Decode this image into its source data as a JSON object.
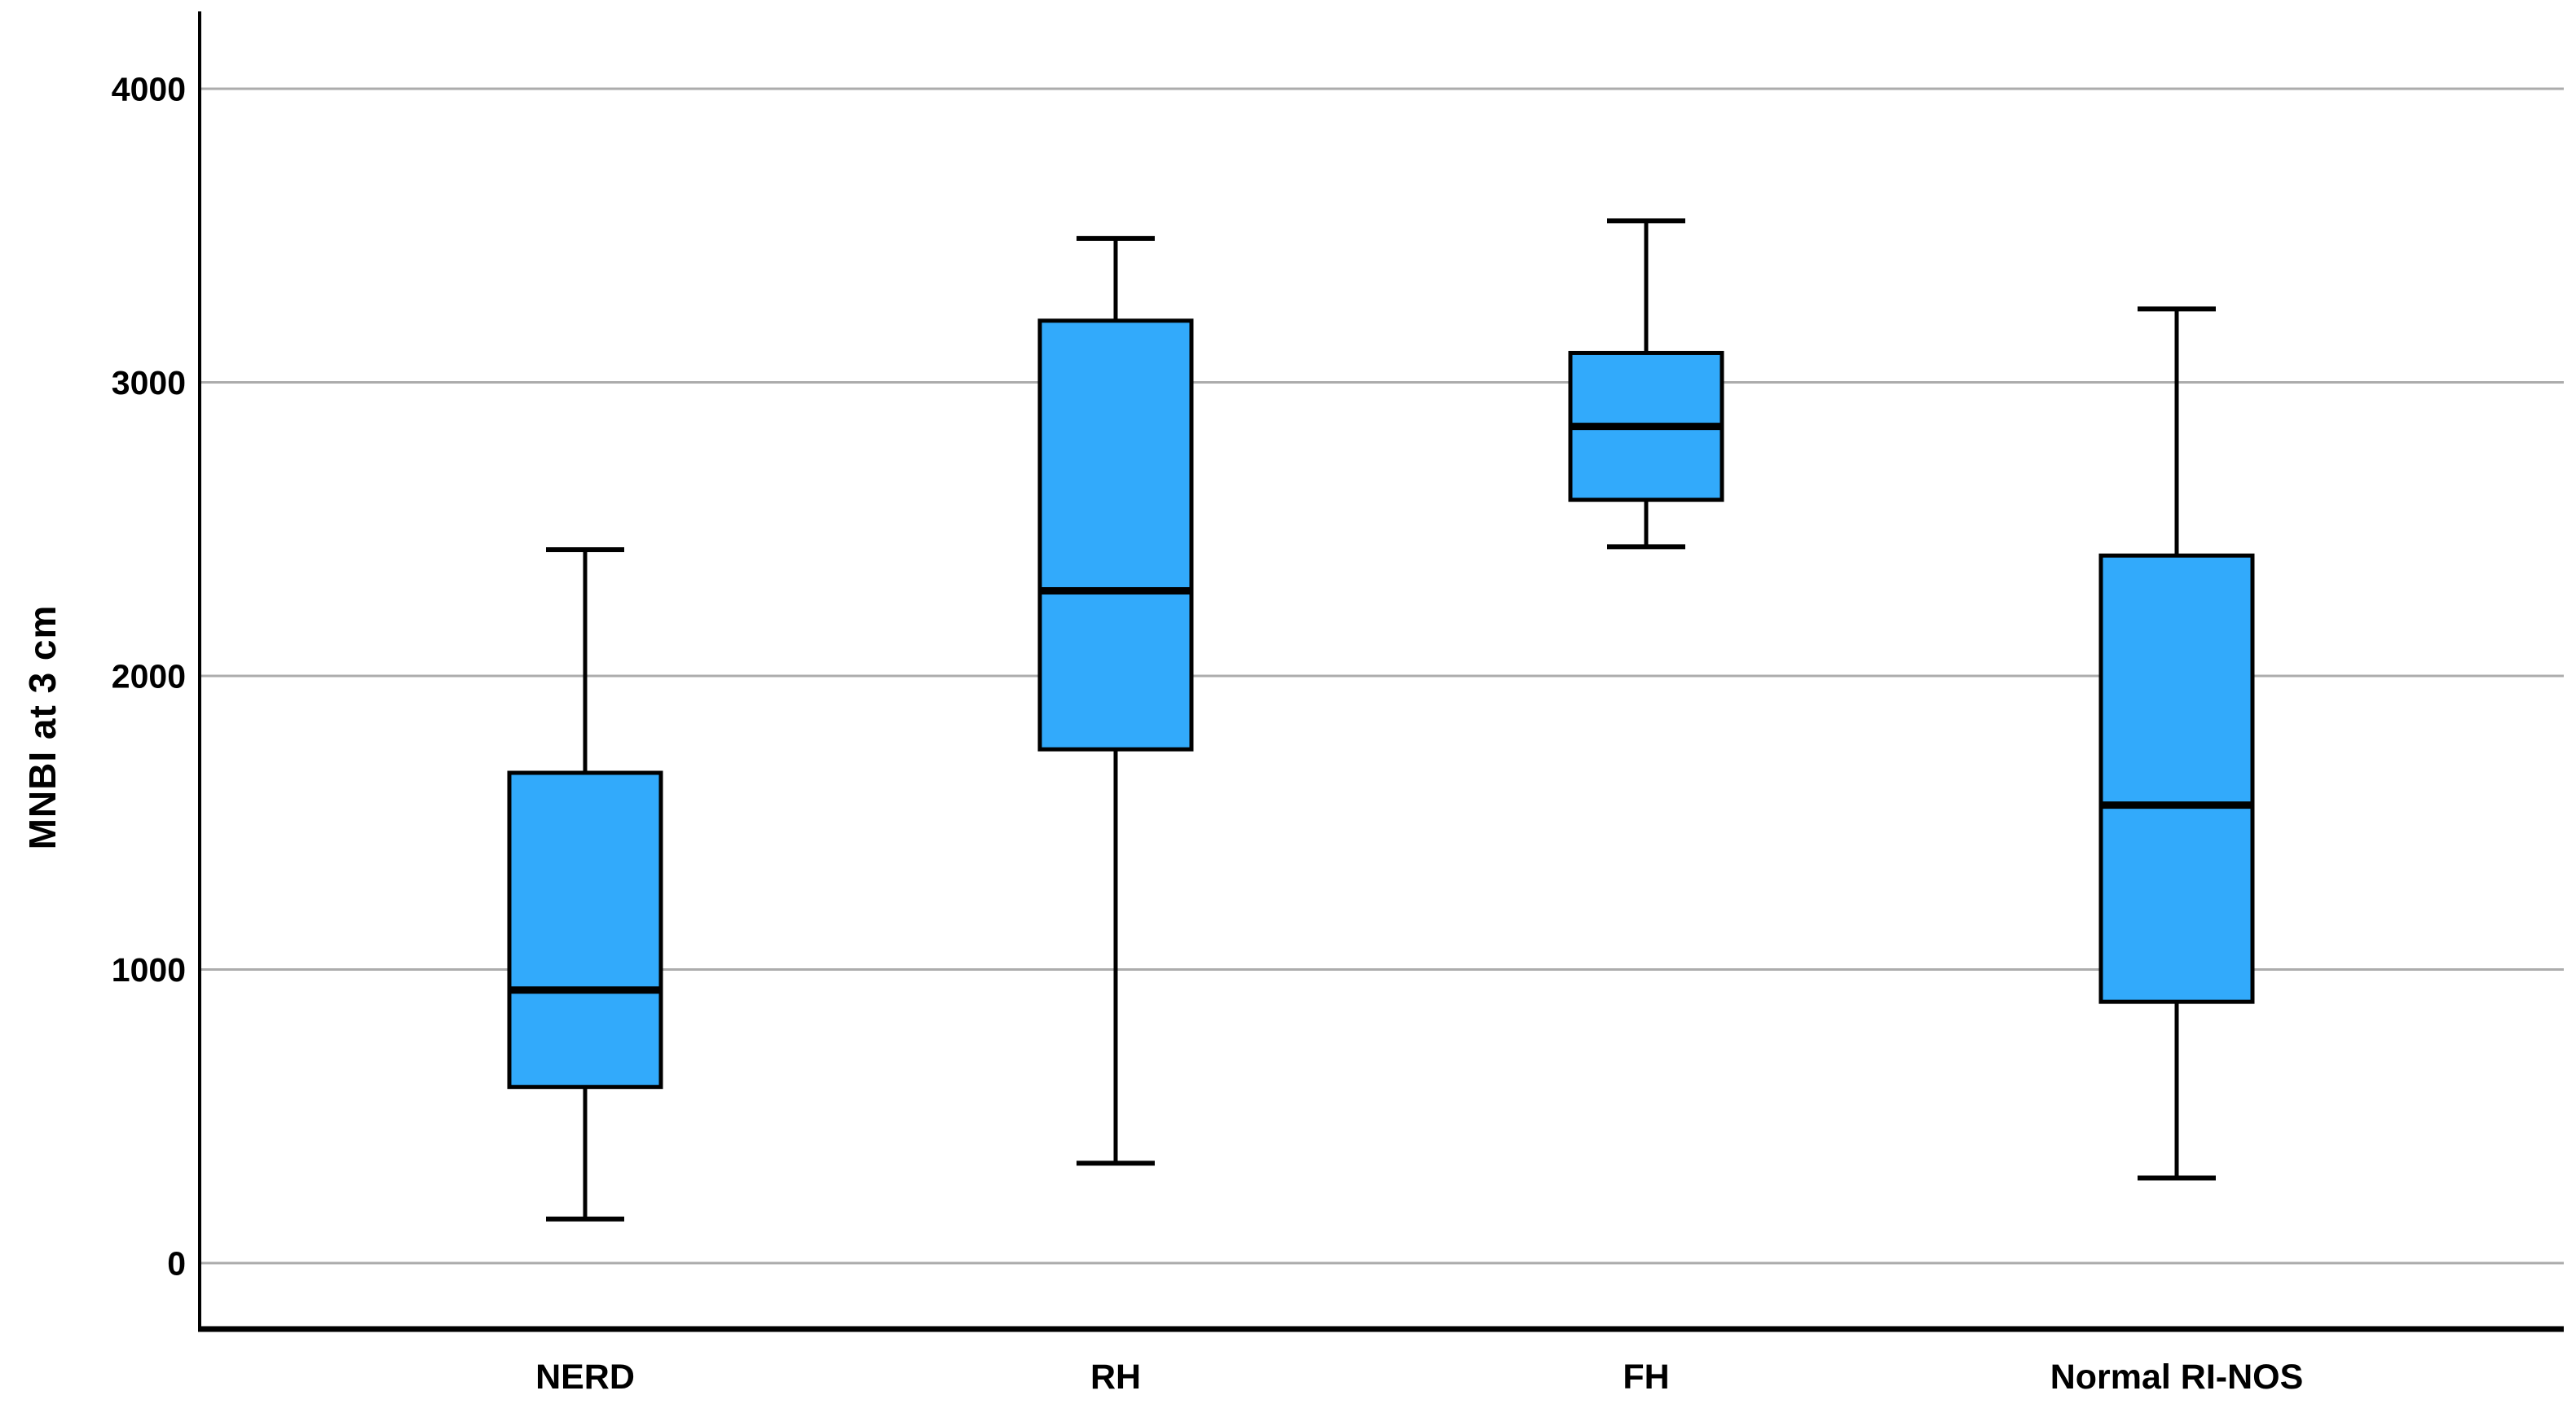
{
  "figure": {
    "background": "#ffffff"
  },
  "chart_data": {
    "type": "box",
    "title": "",
    "xlabel": "",
    "ylabel": "MNBI at 3 cm",
    "categories": [
      "NERD",
      "RH",
      "FH",
      "Normal RI-NOS"
    ],
    "y_ticks": [
      0,
      1000,
      2000,
      3000,
      4000
    ],
    "ylim": [
      -225,
      4260
    ],
    "grid": "horizontal-only",
    "legend": "none",
    "outliers": [],
    "series": [
      {
        "name": "NERD",
        "whisker_low": 150,
        "q1": 600,
        "median": 930,
        "q3": 1670,
        "whisker_high": 2430
      },
      {
        "name": "RH",
        "whisker_low": 340,
        "q1": 1750,
        "median": 2290,
        "q3": 3210,
        "whisker_high": 3490
      },
      {
        "name": "FH",
        "whisker_low": 2440,
        "q1": 2600,
        "median": 2850,
        "q3": 3100,
        "whisker_high": 3550
      },
      {
        "name": "Normal RI-NOS",
        "whisker_low": 290,
        "q1": 890,
        "median": 1560,
        "q3": 2410,
        "whisker_high": 3250
      }
    ],
    "colors": {
      "box_fill": "#32AAFB",
      "box_border": "#000000",
      "median_line": "#000000",
      "whisker": "#000000",
      "gridline": "#ACACAC",
      "axis": "#000000",
      "text": "#000000",
      "background": "#FFFFFF"
    }
  }
}
